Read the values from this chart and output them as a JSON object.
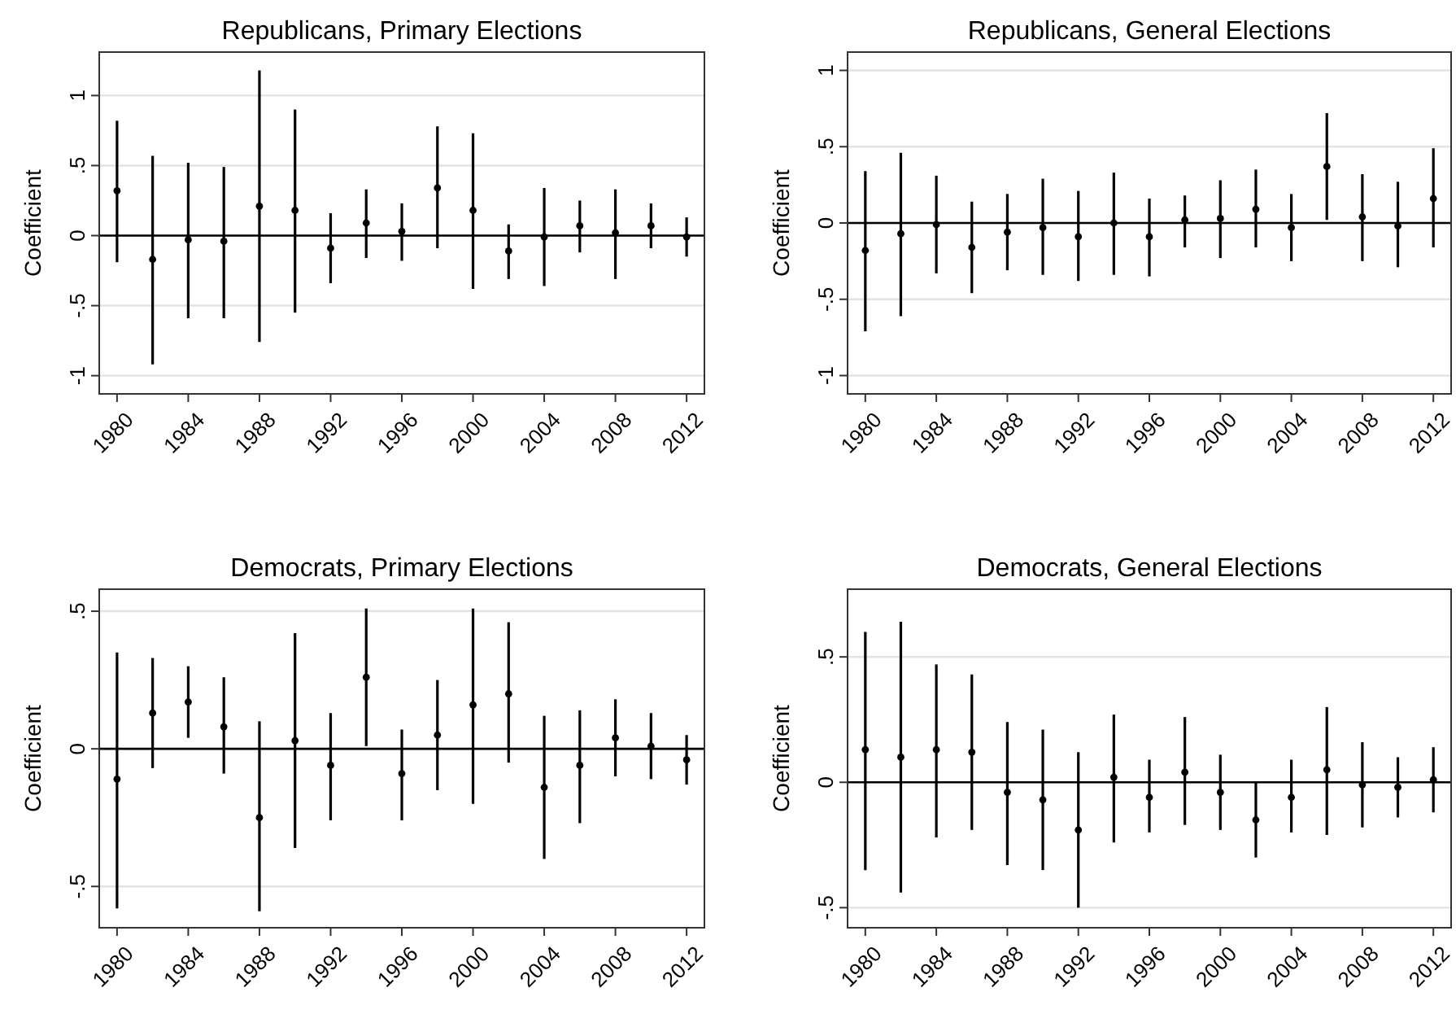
{
  "chart_data": [
    {
      "type": "scatter",
      "title": "Republicans, Primary Elections",
      "ylabel": "Coefficient",
      "x": [
        1980,
        1982,
        1984,
        1986,
        1988,
        1990,
        1992,
        1994,
        1996,
        1998,
        2000,
        2002,
        2004,
        2006,
        2008,
        2010,
        2012
      ],
      "xlim": [
        1979,
        2013
      ],
      "xticks": [
        1980,
        1984,
        1988,
        1992,
        1996,
        2000,
        2004,
        2008,
        2012
      ],
      "ylim": [
        -1.13,
        1.31
      ],
      "yticks": [
        {
          "value": -1,
          "label": "-1"
        },
        {
          "value": -0.5,
          "label": "-.5"
        },
        {
          "value": 0,
          "label": "0"
        },
        {
          "value": 0.5,
          "label": ".5"
        },
        1
      ],
      "grid": "y",
      "marker": "circle",
      "ref_lines": [
        {
          "axis": "y",
          "value": 0,
          "color": "#000000"
        }
      ],
      "series": [
        {
          "color": "#000000",
          "values": [
            0.32,
            -0.17,
            -0.03,
            -0.04,
            0.21,
            0.18,
            -0.09,
            0.09,
            0.03,
            0.34,
            0.18,
            -0.11,
            -0.01,
            0.07,
            0.02,
            0.07,
            -0.01
          ],
          "errors": [
            [
              -0.19,
              0.82
            ],
            [
              -0.92,
              0.57
            ],
            [
              -0.59,
              0.52
            ],
            [
              -0.59,
              0.49
            ],
            [
              -0.76,
              1.18
            ],
            [
              -0.55,
              0.9
            ],
            [
              -0.34,
              0.16
            ],
            [
              -0.16,
              0.33
            ],
            [
              -0.18,
              0.23
            ],
            [
              -0.09,
              0.78
            ],
            [
              -0.38,
              0.73
            ],
            [
              -0.31,
              0.08
            ],
            [
              -0.36,
              0.34
            ],
            [
              -0.12,
              0.25
            ],
            [
              -0.31,
              0.33
            ],
            [
              -0.09,
              0.23
            ],
            [
              -0.15,
              0.13
            ]
          ]
        }
      ]
    },
    {
      "type": "scatter",
      "title": "Republicans, General Elections",
      "ylabel": "Coefficient",
      "x": [
        1980,
        1982,
        1984,
        1986,
        1988,
        1990,
        1992,
        1994,
        1996,
        1998,
        2000,
        2002,
        2004,
        2006,
        2008,
        2010,
        2012
      ],
      "xlim": [
        1979,
        2013
      ],
      "xticks": [
        1980,
        1984,
        1988,
        1992,
        1996,
        2000,
        2004,
        2008,
        2012
      ],
      "ylim": [
        -1.12,
        1.12
      ],
      "yticks": [
        {
          "value": -1,
          "label": "-1"
        },
        {
          "value": -0.5,
          "label": "-.5"
        },
        {
          "value": 0,
          "label": "0"
        },
        {
          "value": 0.5,
          "label": ".5"
        },
        1
      ],
      "grid": "y",
      "marker": "circle",
      "ref_lines": [
        {
          "axis": "y",
          "value": 0,
          "color": "#000000"
        }
      ],
      "series": [
        {
          "color": "#000000",
          "values": [
            -0.18,
            -0.07,
            -0.01,
            -0.16,
            -0.06,
            -0.03,
            -0.09,
            0.0,
            -0.09,
            0.02,
            0.03,
            0.09,
            -0.03,
            0.37,
            0.04,
            -0.02,
            0.16
          ],
          "errors": [
            [
              -0.71,
              0.34
            ],
            [
              -0.61,
              0.46
            ],
            [
              -0.33,
              0.31
            ],
            [
              -0.46,
              0.14
            ],
            [
              -0.31,
              0.19
            ],
            [
              -0.34,
              0.29
            ],
            [
              -0.38,
              0.21
            ],
            [
              -0.34,
              0.33
            ],
            [
              -0.35,
              0.16
            ],
            [
              -0.16,
              0.18
            ],
            [
              -0.23,
              0.28
            ],
            [
              -0.16,
              0.35
            ],
            [
              -0.25,
              0.19
            ],
            [
              0.02,
              0.72
            ],
            [
              -0.25,
              0.32
            ],
            [
              -0.29,
              0.27
            ],
            [
              -0.16,
              0.49
            ]
          ]
        }
      ]
    },
    {
      "type": "scatter",
      "title": "Democrats, Primary Elections",
      "ylabel": "Coefficient",
      "x": [
        1980,
        1982,
        1984,
        1986,
        1988,
        1990,
        1992,
        1994,
        1996,
        1998,
        2000,
        2002,
        2004,
        2006,
        2008,
        2010,
        2012
      ],
      "xlim": [
        1979,
        2013
      ],
      "xticks": [
        1980,
        1984,
        1988,
        1992,
        1996,
        2000,
        2004,
        2008,
        2012
      ],
      "ylim": [
        -0.65,
        0.58
      ],
      "yticks": [
        {
          "value": -0.5,
          "label": "-.5"
        },
        {
          "value": 0,
          "label": "0"
        },
        {
          "value": 0.5,
          "label": ".5"
        }
      ],
      "grid": "y",
      "marker": "circle",
      "ref_lines": [
        {
          "axis": "y",
          "value": 0,
          "color": "#000000"
        }
      ],
      "series": [
        {
          "color": "#000000",
          "values": [
            -0.11,
            0.13,
            0.17,
            0.08,
            -0.25,
            0.03,
            -0.06,
            0.26,
            -0.09,
            0.05,
            0.16,
            0.2,
            -0.14,
            -0.06,
            0.04,
            0.01,
            -0.04
          ],
          "errors": [
            [
              -0.58,
              0.35
            ],
            [
              -0.07,
              0.33
            ],
            [
              0.04,
              0.3
            ],
            [
              -0.09,
              0.26
            ],
            [
              -0.59,
              0.1
            ],
            [
              -0.36,
              0.42
            ],
            [
              -0.26,
              0.13
            ],
            [
              0.01,
              0.51
            ],
            [
              -0.26,
              0.07
            ],
            [
              -0.15,
              0.25
            ],
            [
              -0.2,
              0.51
            ],
            [
              -0.05,
              0.46
            ],
            [
              -0.4,
              0.12
            ],
            [
              -0.27,
              0.14
            ],
            [
              -0.1,
              0.18
            ],
            [
              -0.11,
              0.13
            ],
            [
              -0.13,
              0.05
            ]
          ]
        }
      ]
    },
    {
      "type": "scatter",
      "title": "Democrats, General Elections",
      "ylabel": "Coefficient",
      "x": [
        1980,
        1982,
        1984,
        1986,
        1988,
        1990,
        1992,
        1994,
        1996,
        1998,
        2000,
        2002,
        2004,
        2006,
        2008,
        2010,
        2012
      ],
      "xlim": [
        1979,
        2013
      ],
      "xticks": [
        1980,
        1984,
        1988,
        1992,
        1996,
        2000,
        2004,
        2008,
        2012
      ],
      "ylim": [
        -0.58,
        0.77
      ],
      "yticks": [
        {
          "value": -0.5,
          "label": "-.5"
        },
        {
          "value": 0,
          "label": "0"
        },
        {
          "value": 0.5,
          "label": ".5"
        }
      ],
      "grid": "y",
      "marker": "circle",
      "ref_lines": [
        {
          "axis": "y",
          "value": 0,
          "color": "#000000"
        }
      ],
      "series": [
        {
          "color": "#000000",
          "values": [
            0.13,
            0.1,
            0.13,
            0.12,
            -0.04,
            -0.07,
            -0.19,
            0.02,
            -0.06,
            0.04,
            -0.04,
            -0.15,
            -0.06,
            0.05,
            -0.01,
            -0.02,
            0.01
          ],
          "errors": [
            [
              -0.35,
              0.6
            ],
            [
              -0.44,
              0.64
            ],
            [
              -0.22,
              0.47
            ],
            [
              -0.19,
              0.43
            ],
            [
              -0.33,
              0.24
            ],
            [
              -0.35,
              0.21
            ],
            [
              -0.5,
              0.12
            ],
            [
              -0.24,
              0.27
            ],
            [
              -0.2,
              0.09
            ],
            [
              -0.17,
              0.26
            ],
            [
              -0.19,
              0.11
            ],
            [
              -0.3,
              0.0
            ],
            [
              -0.2,
              0.09
            ],
            [
              -0.21,
              0.3
            ],
            [
              -0.18,
              0.16
            ],
            [
              -0.14,
              0.1
            ],
            [
              -0.12,
              0.14
            ]
          ]
        }
      ]
    }
  ]
}
